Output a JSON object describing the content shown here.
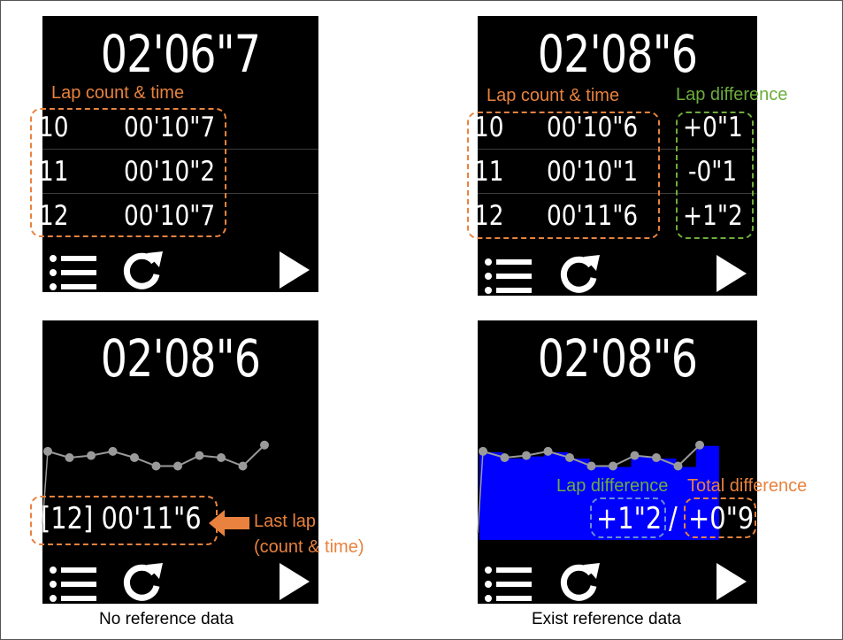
{
  "panels": {
    "top_left": {
      "time": "02'06\"7",
      "annotation": "Lap count & time",
      "laps": [
        {
          "num": "10",
          "time": "00'10\"7"
        },
        {
          "num": "11",
          "time": "00'10\"2"
        },
        {
          "num": "12",
          "time": "00'10\"7"
        }
      ]
    },
    "top_right": {
      "time": "02'08\"6",
      "annotation_laps": "Lap count & time",
      "annotation_diff": "Lap difference",
      "laps": [
        {
          "num": "10",
          "time": "00'10\"6",
          "diff": "+0\"1"
        },
        {
          "num": "11",
          "time": "00'10\"1",
          "diff": "-0\"1"
        },
        {
          "num": "12",
          "time": "00'11\"6",
          "diff": "+1\"2"
        }
      ]
    },
    "bottom_left": {
      "time": "02'08\"6",
      "last_lap": "[12] 00'11\"6",
      "annotation_line1": "Last lap",
      "annotation_line2": "(count & time)",
      "caption": "No reference data"
    },
    "bottom_right": {
      "time": "02'08\"6",
      "label_lap_diff": "Lap difference",
      "label_total_diff": "Total difference",
      "lap_diff": "+1\"2",
      "separator": "/",
      "total_diff": "+0\"9",
      "caption": "Exist reference data"
    }
  },
  "toolbar": {
    "menu_icon": "list-icon",
    "reset_icon": "refresh-icon",
    "play_icon": "play-icon"
  },
  "colors": {
    "screen_bg": "#000000",
    "text": "#ffffff",
    "orange": "#e8823e",
    "green": "#6cad3d",
    "blue_area": "#0000ff",
    "graph_line": "#9a9a9a"
  },
  "graph": {
    "lap_values": [
      10.9,
      10.6,
      10.7,
      10.9,
      10.6,
      10.2,
      10.2,
      10.7,
      10.6,
      10.2,
      11.2
    ]
  }
}
